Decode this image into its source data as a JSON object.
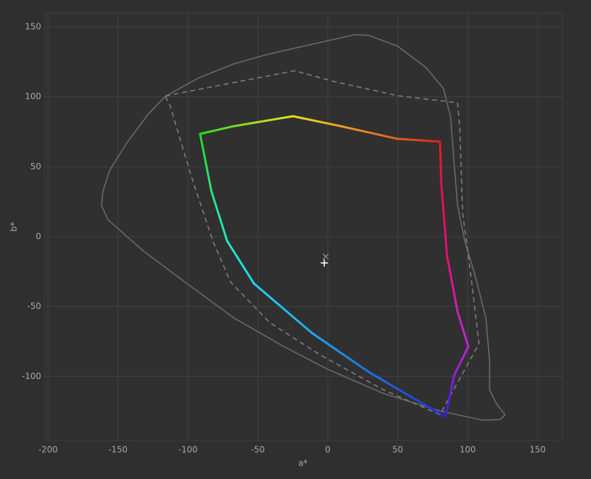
{
  "chart_data": {
    "type": "line",
    "xlabel": "a*",
    "ylabel": "b*",
    "xlim": [
      -202.4,
      167.9
    ],
    "ylim": [
      -146,
      160.2
    ],
    "xticks": [
      -200,
      -150,
      -100,
      -50,
      0,
      50,
      100,
      150
    ],
    "yticks": [
      -100,
      -50,
      0,
      50,
      100,
      150
    ],
    "grid": true,
    "series": [
      {
        "style": "solid",
        "color": "#6a6a6a",
        "x": [
          -116.2,
          -92.3,
          -67.0,
          -41.6,
          -21.3,
          -1.0,
          19.3,
          29.4,
          49.7,
          70.0,
          82.7,
          87.8,
          90.3,
          92.8,
          97.9,
          105.5,
          113.1,
          115.7,
          115.7,
          120.7,
          126.8,
          123.3,
          110.6,
          80.2,
          39.6,
          -1.0,
          -31.4,
          -66.9,
          -101.4,
          -131.9,
          -157.2,
          -161.8,
          -160.8,
          -155.8,
          -143.1,
          -127.9,
          -116.2
        ],
        "y": [
          100.4,
          113.6,
          123.7,
          130.8,
          135.4,
          140.0,
          144.5,
          144.0,
          136.4,
          121.2,
          106.0,
          85.7,
          52.7,
          22.3,
          -3.0,
          -28.4,
          -58.8,
          -89.2,
          -109.5,
          -119.7,
          -127.3,
          -130.8,
          -131.3,
          -124.7,
          -112.1,
          -94.4,
          -78.6,
          -58.3,
          -33.0,
          -10.2,
          12.2,
          22.3,
          32.5,
          47.7,
          68.0,
          88.2,
          100.4
        ]
      },
      {
        "style": "dashed",
        "color": "#7e7e7e",
        "x": [
          -116.2,
          -110.1,
          -23.8,
          4.1,
          49.7,
          92.8,
          94.4,
          96.4,
          103.0,
          108.1,
          80.2,
          39.6,
          -6.1,
          -41.6,
          -69.5,
          -82.2,
          -97.4,
          -112.6,
          -116.2
        ],
        "y": [
          100.4,
          101.9,
          118.7,
          111.1,
          100.9,
          95.8,
          78.1,
          17.2,
          -33.5,
          -76.6,
          -127.3,
          -109.5,
          -84.2,
          -61.4,
          -32.5,
          -3.0,
          42.6,
          93.3,
          100.4
        ]
      },
      {
        "style": "gradient",
        "colors": [
          "#22dd22",
          "#77dd22",
          "#e8e020",
          "#f0a020",
          "#e06020",
          "#e02020",
          "#e8104a",
          "#e0107a",
          "#d020b0",
          "#c020e0",
          "#9020e0",
          "#3020e0",
          "#2040e0",
          "#2070e8",
          "#20a8f0",
          "#20d8f0",
          "#20e8c0",
          "#30e080",
          "#22dd22"
        ],
        "x": [
          -91.3,
          -67.0,
          -24.9,
          9.1,
          49.7,
          80.2,
          81.2,
          85.2,
          92.8,
          100.5,
          90.3,
          84.2,
          70.0,
          29.4,
          -11.2,
          -52.8,
          -72.0,
          -83.2,
          -91.3
        ],
        "y": [
          73.5,
          79.1,
          86.2,
          79.1,
          70.0,
          68.0,
          37.5,
          -13.2,
          -53.8,
          -78.6,
          -99.4,
          -128.8,
          -120.7,
          -96.9,
          -69.0,
          -33.5,
          -3.0,
          32.5,
          73.5
        ]
      }
    ],
    "points": [
      {
        "x": -2.5,
        "y": -18.8,
        "marker": "plus",
        "color": "#ffffff"
      },
      {
        "x": -1.5,
        "y": -14.2,
        "marker": "cross",
        "color": "#8a8a8a"
      }
    ]
  }
}
